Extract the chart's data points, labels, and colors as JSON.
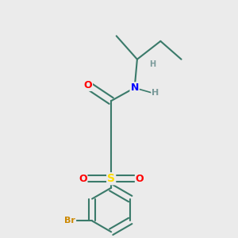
{
  "background_color": "#ebebeb",
  "bond_color": "#3a7a6a",
  "atom_colors": {
    "O": "#ff0000",
    "N": "#0000ff",
    "S": "#ffdd00",
    "Br": "#cc8800",
    "H": "#7a9a9a",
    "C": "#3a7a6a"
  },
  "bond_width": 1.5,
  "figsize": [
    3.0,
    3.0
  ],
  "dpi": 100,
  "xlim": [
    0.15,
    0.85
  ],
  "ylim": [
    0.05,
    0.95
  ]
}
